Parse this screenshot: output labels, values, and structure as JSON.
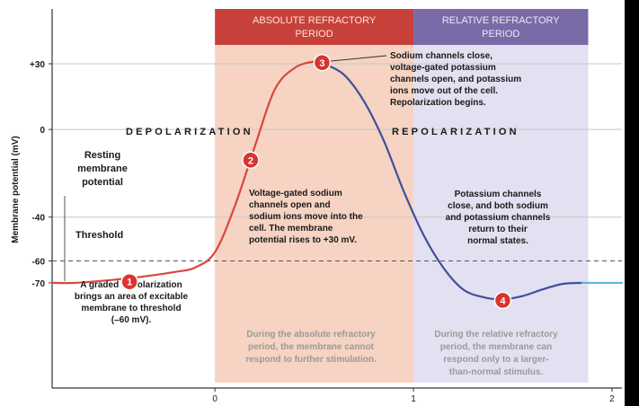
{
  "chart_data": {
    "type": "line",
    "title": "",
    "ylabel": "Membrane potential (mV)",
    "xlabel": "",
    "xlim": [
      -0.82,
      2.05
    ],
    "ylim": [
      -118,
      55
    ],
    "y_ticks": [
      30,
      0,
      -40,
      -60,
      -70
    ],
    "y_tick_labels": [
      "+30",
      "0",
      "-40",
      "-60",
      "-70"
    ],
    "x_ticks": [
      0,
      1,
      2
    ],
    "x_tick_labels": [
      "0",
      "1",
      "2"
    ],
    "threshold": -60,
    "resting": -70,
    "series": [
      {
        "segment": "depolarization",
        "color": "#d9473f",
        "x": [
          -0.82,
          -0.7,
          -0.5,
          -0.35,
          -0.2,
          -0.1,
          0,
          0.1,
          0.2,
          0.3,
          0.4,
          0.5,
          0.55
        ],
        "y": [
          -70,
          -70,
          -68.5,
          -67,
          -65,
          -63,
          -56,
          -35,
          -8,
          18,
          28,
          31,
          30
        ]
      },
      {
        "segment": "repolarization",
        "color": "#3f4f9c",
        "x": [
          0.55,
          0.65,
          0.75,
          0.85,
          0.95,
          1.05,
          1.15,
          1.25,
          1.35,
          1.45,
          1.55,
          1.65,
          1.75,
          1.85
        ],
        "y": [
          30,
          25,
          13,
          -5,
          -28,
          -48,
          -63,
          -73,
          -76.5,
          -77.5,
          -76,
          -73,
          -70.5,
          -70
        ]
      },
      {
        "segment": "baseline",
        "color": "#5ab8df",
        "x": [
          1.85,
          2.05
        ],
        "y": [
          -70,
          -70
        ]
      }
    ],
    "grid": true,
    "legend": "none"
  },
  "periods": {
    "absolute": {
      "label_line1": "ABSOLUTE REFRACTORY",
      "label_line2": "PERIOD",
      "color": "#c8403a",
      "fill": "#f6d3c2"
    },
    "relative": {
      "label_line1": "RELATIVE REFRACTORY",
      "label_line2": "PERIOD",
      "color": "#7b6aa8",
      "fill": "#e3e0f1"
    }
  },
  "phase_labels": {
    "depolarization": "DEPOLARIZATION",
    "repolarization": "REPOLARIZATION"
  },
  "annotations": {
    "resting": [
      "Resting",
      "membrane",
      "potential"
    ],
    "threshold": "Threshold",
    "step1": [
      "A graded depolarization",
      "brings an area of excitable",
      "membrane to threshold",
      "(–60 mV)."
    ],
    "step2": [
      "Voltage-gated sodium",
      "channels open and",
      "sodium ions move into the",
      "cell. The membrane",
      "potential rises to +30 mV."
    ],
    "step3": [
      "Sodium channels close,",
      "voltage-gated potassium",
      "channels open, and potassium",
      "ions move out of the cell.",
      "Repolarization begins."
    ],
    "step4": [
      "Potassium channels",
      "close, and both sodium",
      "and potassium channels",
      "return to their",
      "normal states."
    ],
    "abs_note": [
      "During the absolute refractory",
      "period, the membrane cannot",
      "respond to further stimulation."
    ],
    "rel_note": [
      "During the relative refractory",
      "period, the membrane can",
      "respond only to a larger-",
      "than-normal stimulus."
    ]
  },
  "markers": [
    "1",
    "2",
    "3",
    "4"
  ],
  "colors": {
    "marker": "#d9352e",
    "axis": "#333333",
    "grid": "#c8c8c8",
    "gray_text": "#9a9a9a"
  }
}
